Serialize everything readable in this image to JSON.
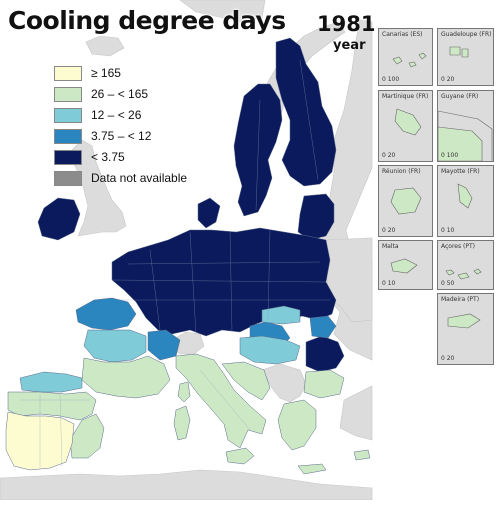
{
  "title": "Cooling degree days",
  "year": "1981",
  "year_label": "year",
  "colors": {
    "sea": "#ffffff",
    "non_eu_land": "#dcdcdc",
    "land_border": "#9b9b9b",
    "class_ge165": "#fdfcd0",
    "class_26_165": "#cde8c4",
    "class_12_26": "#7fcbd7",
    "class_375_12": "#2b86bf",
    "class_lt375": "#0b1a5c",
    "no_data": "#8c8c8c"
  },
  "legend": [
    {
      "label": "≥ 165",
      "color": "#fdfcd0"
    },
    {
      "label": "26 – < 165",
      "color": "#cde8c4"
    },
    {
      "label": "12 – < 26",
      "color": "#7fcbd7"
    },
    {
      "label": "3.75 – < 12",
      "color": "#2b86bf"
    },
    {
      "label": "< 3.75",
      "color": "#0b1a5c"
    },
    {
      "label": "Data not available",
      "color": "#8c8c8c"
    }
  ],
  "insets": [
    {
      "label": "Canarias (ES)",
      "scale": "0 100"
    },
    {
      "label": "Guadeloupe (FR)",
      "scale": "0 20"
    },
    {
      "label": "Martinique (FR)",
      "scale": "0 20"
    },
    {
      "label": "Guyane (FR)",
      "scale": "0 100"
    },
    {
      "label": "Réunion (FR)",
      "scale": "0 20"
    },
    {
      "label": "Mayotte (FR)",
      "scale": "0 10"
    },
    {
      "label": "Malta",
      "scale": "0 10"
    },
    {
      "label": "Açores (PT)",
      "scale": "0 50"
    },
    {
      "label": "Madeira (PT)",
      "scale": "0 20"
    }
  ]
}
